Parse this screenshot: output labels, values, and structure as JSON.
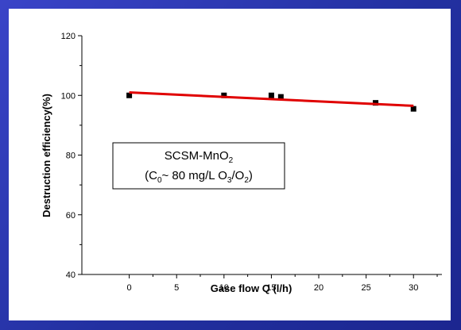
{
  "chart_data": {
    "type": "scatter",
    "xlabel": "Gase flow Q (l/h)",
    "ylabel": "Destruction efficiency(%)",
    "xlim": [
      -5,
      33
    ],
    "ylim": [
      40,
      120
    ],
    "x_ticks": [
      0,
      5,
      10,
      15,
      20,
      25,
      30
    ],
    "y_ticks": [
      40,
      60,
      80,
      100,
      120
    ],
    "grid": false,
    "series": [
      {
        "marker": "square",
        "color": "#000000",
        "x": [
          0,
          10,
          15,
          16,
          26,
          30
        ],
        "y": [
          100,
          100,
          100,
          99.5,
          97.5,
          95.5
        ]
      },
      {
        "type": "line",
        "color": "#e00000",
        "x": [
          0,
          30
        ],
        "y": [
          101,
          96.5
        ]
      }
    ],
    "annotation": {
      "line1": "SCSM-MnO",
      "line1_sub": "2",
      "line2_pre": "(C",
      "line2_sub1": "0",
      "line2_mid": "~ 80 mg/L  O",
      "line2_sub2": "3",
      "line2_slash": "/O",
      "line2_sub3": "2",
      "line2_end": ")"
    }
  }
}
